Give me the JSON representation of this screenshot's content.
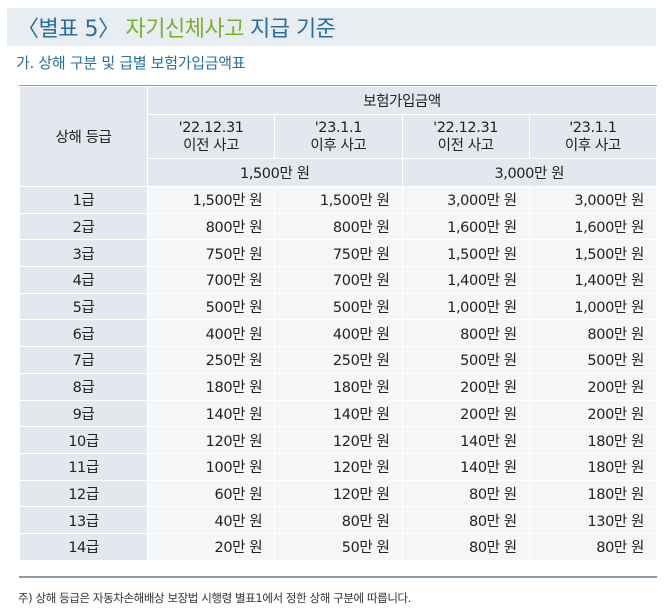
{
  "title": {
    "bracket_open": "〈",
    "label": "별표 5",
    "bracket_close": "〉",
    "highlight": "자기신체사고",
    "rest": "지급 기준"
  },
  "subtitle": "가. 상해 구분 및 급별 보험가입금액표",
  "table": {
    "grade_header": "상해 등급",
    "group_header": "보험가입금액",
    "period_headers": [
      {
        "line1": "'22.12.31",
        "line2": "이전 사고"
      },
      {
        "line1": "'23.1.1",
        "line2": "이후 사고"
      },
      {
        "line1": "'22.12.31",
        "line2": "이전 사고"
      },
      {
        "line1": "'23.1.1",
        "line2": "이후 사고"
      }
    ],
    "amount_headers": [
      "1,500만 원",
      "3,000만 원"
    ],
    "rows": [
      {
        "grade": "1급",
        "v": [
          "1,500만 원",
          "1,500만 원",
          "3,000만 원",
          "3,000만 원"
        ]
      },
      {
        "grade": "2급",
        "v": [
          "800만 원",
          "800만 원",
          "1,600만 원",
          "1,600만 원"
        ]
      },
      {
        "grade": "3급",
        "v": [
          "750만 원",
          "750만 원",
          "1,500만 원",
          "1,500만 원"
        ]
      },
      {
        "grade": "4급",
        "v": [
          "700만 원",
          "700만 원",
          "1,400만 원",
          "1,400만 원"
        ]
      },
      {
        "grade": "5급",
        "v": [
          "500만 원",
          "500만 원",
          "1,000만 원",
          "1,000만 원"
        ]
      },
      {
        "grade": "6급",
        "v": [
          "400만 원",
          "400만 원",
          "800만 원",
          "800만 원"
        ]
      },
      {
        "grade": "7급",
        "v": [
          "250만 원",
          "250만 원",
          "500만 원",
          "500만 원"
        ]
      },
      {
        "grade": "8급",
        "v": [
          "180만 원",
          "180만 원",
          "200만 원",
          "200만 원"
        ]
      },
      {
        "grade": "9급",
        "v": [
          "140만 원",
          "140만 원",
          "200만 원",
          "200만 원"
        ]
      },
      {
        "grade": "10급",
        "v": [
          "120만 원",
          "120만 원",
          "140만 원",
          "180만 원"
        ]
      },
      {
        "grade": "11급",
        "v": [
          "100만 원",
          "120만 원",
          "140만 원",
          "180만 원"
        ]
      },
      {
        "grade": "12급",
        "v": [
          "60만 원",
          "120만 원",
          "80만 원",
          "180만 원"
        ]
      },
      {
        "grade": "13급",
        "v": [
          "40만 원",
          "80만 원",
          "80만 원",
          "130만 원"
        ]
      },
      {
        "grade": "14급",
        "v": [
          "20만 원",
          "50만 원",
          "80만 원",
          "80만 원"
        ]
      }
    ]
  },
  "footnote": "주) 상해 등급은 자동차손해배상 보장법 시행령 별표1에서 정한 상해 구분에 따릅니다."
}
